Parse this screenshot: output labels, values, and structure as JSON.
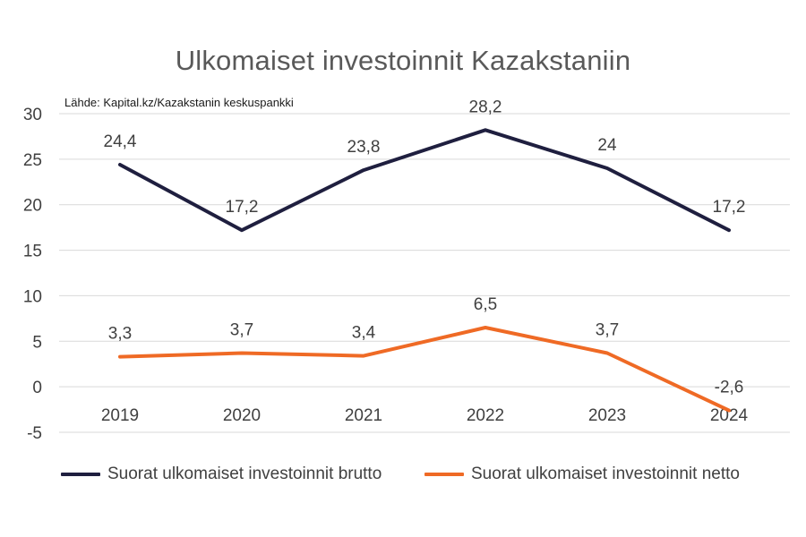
{
  "chart_data": {
    "type": "line",
    "title": "Ulkomaiset investoinnit Kazakstaniin",
    "source": "Lähde: Kapital.kz/Kazakstanin keskuspankki",
    "categories": [
      "2019",
      "2020",
      "2021",
      "2022",
      "2023",
      "2024"
    ],
    "ylim": [
      -5,
      30
    ],
    "yticks": [
      -5,
      0,
      5,
      10,
      15,
      20,
      25,
      30
    ],
    "grid": true,
    "legend_position": "bottom",
    "series": [
      {
        "name": "Suorat ulkomaiset investoinnit brutto",
        "color": "#1f1f3f",
        "values": [
          24.4,
          17.2,
          23.8,
          28.2,
          24,
          17.2
        ],
        "labels": [
          "24,4",
          "17,2",
          "23,8",
          "28,2",
          "24",
          "17,2"
        ]
      },
      {
        "name": "Suorat ulkomaiset investoinnit netto",
        "color": "#ef6a25",
        "values": [
          3.3,
          3.7,
          3.4,
          6.5,
          3.7,
          -2.6
        ],
        "labels": [
          "3,3",
          "3,7",
          "3,4",
          "6,5",
          "3,7",
          "-2,6"
        ]
      }
    ]
  }
}
